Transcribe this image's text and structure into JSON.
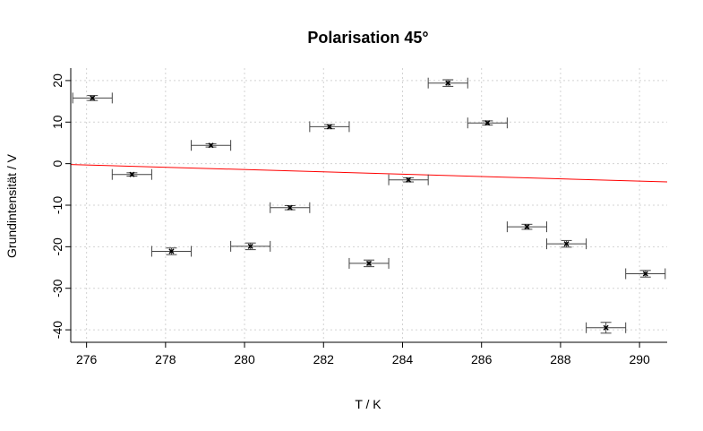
{
  "chart_data": {
    "type": "scatter",
    "title": "Polarisation 45°",
    "xlabel": "T / K",
    "ylabel": "Grundintensität / V",
    "xlim": [
      275.6,
      290.7
    ],
    "ylim": [
      -43,
      23
    ],
    "grid": true,
    "xticks": [
      276,
      278,
      280,
      282,
      284,
      286,
      288,
      290
    ],
    "yticks": [
      20,
      10,
      0,
      -10,
      -20,
      -30,
      -40
    ],
    "points": [
      {
        "x": 276.15,
        "y": 15.8,
        "xerr": 0.5,
        "yerr": 0.6
      },
      {
        "x": 277.15,
        "y": -2.6,
        "xerr": 0.5,
        "yerr": 0.4
      },
      {
        "x": 278.15,
        "y": -21.1,
        "xerr": 0.5,
        "yerr": 0.8
      },
      {
        "x": 279.15,
        "y": 4.4,
        "xerr": 0.5,
        "yerr": 0.4
      },
      {
        "x": 280.15,
        "y": -19.9,
        "xerr": 0.5,
        "yerr": 0.8
      },
      {
        "x": 281.15,
        "y": -10.6,
        "xerr": 0.5,
        "yerr": 0.5
      },
      {
        "x": 282.15,
        "y": 8.9,
        "xerr": 0.5,
        "yerr": 0.5
      },
      {
        "x": 283.15,
        "y": -24.0,
        "xerr": 0.5,
        "yerr": 0.8
      },
      {
        "x": 284.15,
        "y": -3.9,
        "xerr": 0.5,
        "yerr": 0.5
      },
      {
        "x": 285.15,
        "y": 19.4,
        "xerr": 0.5,
        "yerr": 0.8
      },
      {
        "x": 286.15,
        "y": 9.8,
        "xerr": 0.5,
        "yerr": 0.5
      },
      {
        "x": 287.15,
        "y": -15.2,
        "xerr": 0.5,
        "yerr": 0.6
      },
      {
        "x": 288.15,
        "y": -19.3,
        "xerr": 0.5,
        "yerr": 0.8
      },
      {
        "x": 289.15,
        "y": -39.5,
        "xerr": 0.5,
        "yerr": 1.3
      },
      {
        "x": 290.15,
        "y": -26.5,
        "xerr": 0.5,
        "yerr": 0.8
      }
    ],
    "fit_line": {
      "color": "#ff0000",
      "points": [
        [
          275.6,
          -0.2
        ],
        [
          290.7,
          -4.4
        ]
      ]
    },
    "colors": {
      "points": "#000000",
      "errorbars": "#444444",
      "fit": "#ff0000",
      "grid": "#d3d3d3"
    }
  }
}
